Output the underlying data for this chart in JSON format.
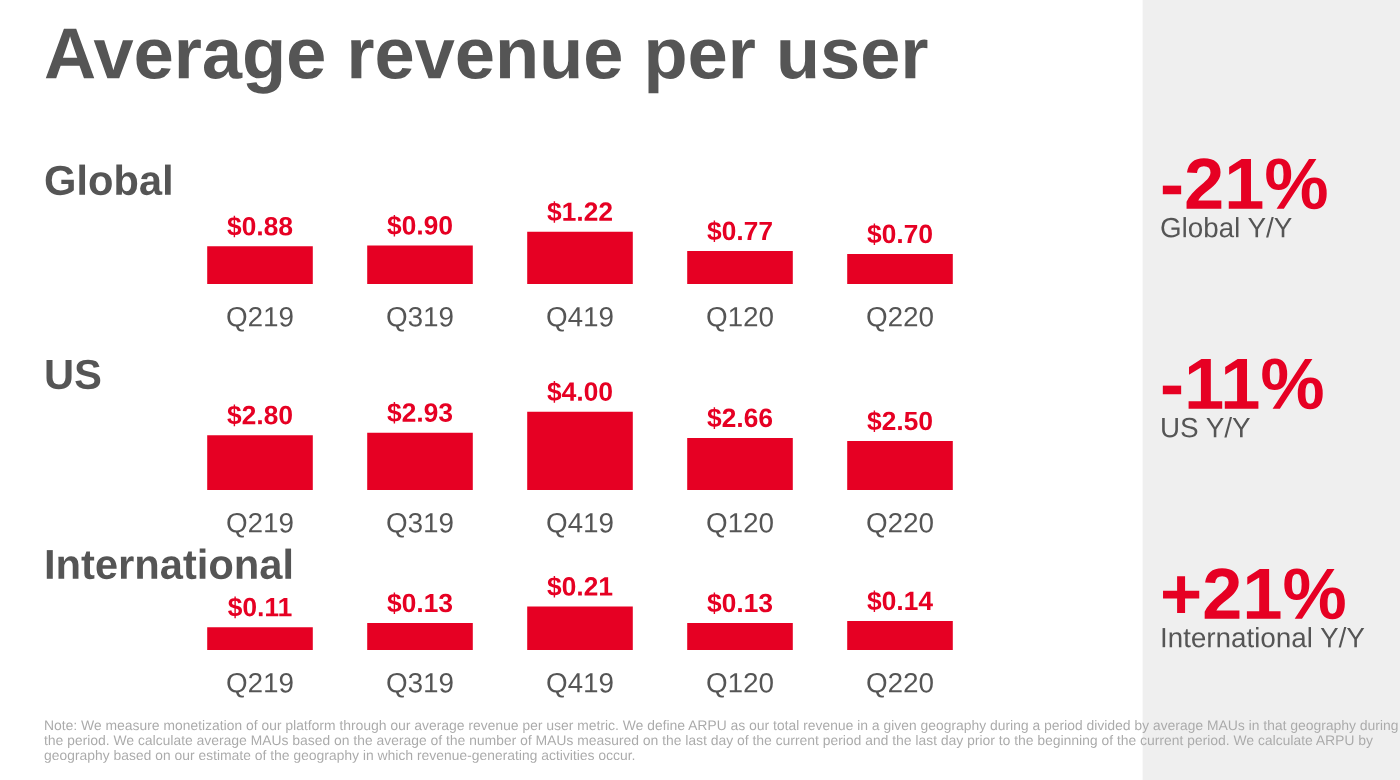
{
  "chart_data": [
    {
      "type": "other",
      "title": "Average revenue per user",
      "annotations": [
        "-21%",
        "Global Y/Y",
        "-11%",
        "US Y/Y",
        "+21%",
        "International Y/Y",
        "Note: We measure monetization of our platform through our average revenue per user metric. We define ARPU as our total revenue in a given geography during a period divided by average MAUs in that geography during the period. We calculate average MAUs based on the average of the number of MAUs measured on the last day of the current period and the last day prior to the beginning of the current period. We calculate ARPU by geography based on our estimate of the geography in which revenue-generating activities occur."
      ]
    },
    {
      "type": "bar",
      "title": "Global",
      "categories": [
        "Q219",
        "Q319",
        "Q419",
        "Q120",
        "Q220"
      ],
      "values": [
        0.88,
        0.9,
        1.22,
        0.77,
        0.7
      ],
      "color": "#e60023",
      "value_labels": [
        "$0.88",
        "$0.90",
        "$1.22",
        "$0.77",
        "$0.70"
      ],
      "tick_labels": "x",
      "grid": false
    },
    {
      "type": "bar",
      "title": "US",
      "categories": [
        "Q219",
        "Q319",
        "Q419",
        "Q120",
        "Q220"
      ],
      "values": [
        2.8,
        2.93,
        4.0,
        2.66,
        2.5
      ],
      "color": "#e60023",
      "value_labels": [
        "$2.80",
        "$2.93",
        "$4.00",
        "$2.66",
        "$2.50"
      ],
      "tick_labels": "x",
      "grid": false
    },
    {
      "type": "bar",
      "title": "International",
      "categories": [
        "Q219",
        "Q319",
        "Q419",
        "Q120",
        "Q220"
      ],
      "values": [
        0.11,
        0.13,
        0.21,
        0.13,
        0.14
      ],
      "color": "#e60023",
      "value_labels": [
        "$0.11",
        "$0.13",
        "$0.21",
        "$0.13",
        "$0.14"
      ],
      "tick_labels": "x",
      "grid": false
    }
  ]
}
